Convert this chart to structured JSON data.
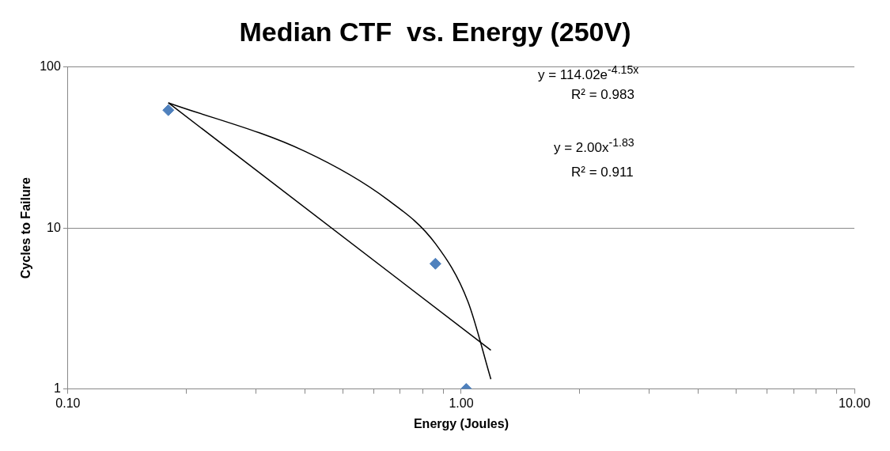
{
  "chart_data": {
    "type": "scatter",
    "title": "Median CTF  vs. Energy (250V)",
    "xlabel": "Energy (Joules)",
    "ylabel": "Cycles to Failure",
    "log": "xy",
    "grid": "y",
    "xlim": [
      0.1,
      10
    ],
    "xticks": [
      {
        "value": 0.1,
        "label": "0.10"
      },
      {
        "value": 0.2,
        "label": null
      },
      {
        "value": 0.3,
        "label": null
      },
      {
        "value": 0.4,
        "label": null
      },
      {
        "value": 0.5,
        "label": null
      },
      {
        "value": 0.6,
        "label": null
      },
      {
        "value": 0.7,
        "label": null
      },
      {
        "value": 0.8,
        "label": null
      },
      {
        "value": 0.9,
        "label": null
      },
      {
        "value": 1,
        "label": "1.00"
      },
      {
        "value": 2,
        "label": null
      },
      {
        "value": 3,
        "label": null
      },
      {
        "value": 4,
        "label": null
      },
      {
        "value": 5,
        "label": null
      },
      {
        "value": 6,
        "label": null
      },
      {
        "value": 7,
        "label": null
      },
      {
        "value": 8,
        "label": null
      },
      {
        "value": 9,
        "label": null
      },
      {
        "value": 10,
        "label": "10.00"
      }
    ],
    "ylim": [
      1,
      100
    ],
    "yticks": [
      1,
      10,
      100
    ],
    "series": [
      {
        "type": "scatter",
        "color": "#4f81bd",
        "marker": "diamond",
        "x": [
          0.18,
          0.86,
          1.03
        ],
        "values": [
          54,
          6,
          1
        ]
      },
      {
        "type": "line",
        "color": "#000000",
        "marker": "none",
        "x": [
          0.18,
          0.4,
          0.65,
          0.86,
          1.04,
          1.19
        ],
        "values": [
          60,
          30,
          15,
          8,
          3.5,
          1.15
        ]
      },
      {
        "type": "line",
        "color": "#000000",
        "marker": "none",
        "x": [
          0.18,
          1.19
        ],
        "values": [
          60,
          1.74
        ]
      }
    ],
    "annotations": [
      "y = 114.02e$^{-4.15x}$",
      "R² = 0.983",
      "y = 2.00x$^{-1.83}$",
      "R² = 0.911"
    ]
  }
}
